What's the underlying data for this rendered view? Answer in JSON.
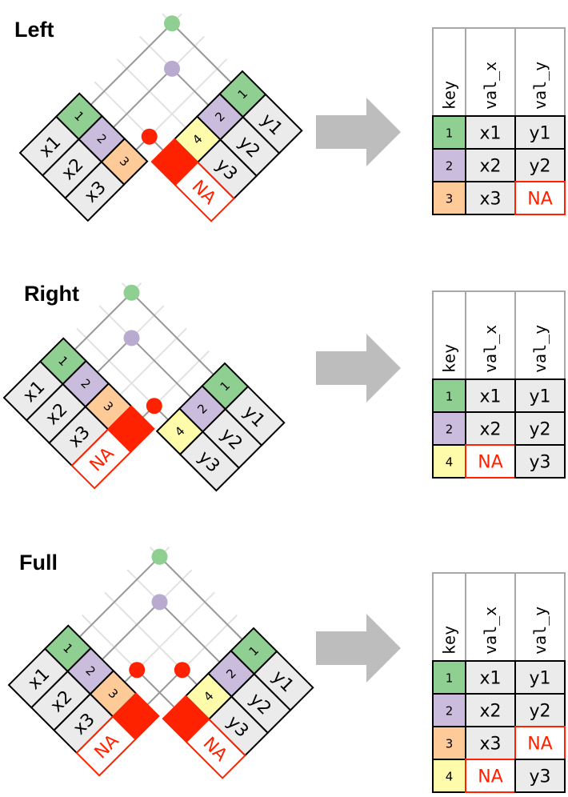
{
  "colors": {
    "1": "#8fcf92",
    "2": "#c9bcdc",
    "3": "#fdca98",
    "4": "#fefbaa",
    "na": "#ff2200",
    "value_cell": "#ebebeb",
    "arrow": "#bdbdbd",
    "dot_2": "#b9abd0"
  },
  "result_headers": [
    "key",
    "val_x",
    "val_y"
  ],
  "panels": [
    {
      "title": "Left",
      "left_table": [
        {
          "key": "1",
          "value": "x1"
        },
        {
          "key": "2",
          "value": "x2"
        },
        {
          "key": "3",
          "value": "x3"
        }
      ],
      "right_table": [
        {
          "key": "1",
          "value": "y1"
        },
        {
          "key": "2",
          "value": "y2"
        },
        {
          "key": "4",
          "value": "y3"
        },
        {
          "key": "",
          "value": "NA",
          "missing": true
        }
      ],
      "matches": [
        [
          0,
          0,
          "1"
        ],
        [
          1,
          1,
          "2"
        ],
        [
          2,
          3,
          "na"
        ]
      ],
      "result_rows": [
        {
          "key": "1",
          "val_x": "x1",
          "val_y": "y1"
        },
        {
          "key": "2",
          "val_x": "x2",
          "val_y": "y2"
        },
        {
          "key": "3",
          "val_x": "x3",
          "val_y": "NA"
        }
      ]
    },
    {
      "title": "Right",
      "left_table": [
        {
          "key": "1",
          "value": "x1"
        },
        {
          "key": "2",
          "value": "x2"
        },
        {
          "key": "3",
          "value": "x3"
        },
        {
          "key": "",
          "value": "NA",
          "missing": true
        }
      ],
      "right_table": [
        {
          "key": "1",
          "value": "y1"
        },
        {
          "key": "2",
          "value": "y2"
        },
        {
          "key": "4",
          "value": "y3"
        }
      ],
      "matches": [
        [
          0,
          0,
          "1"
        ],
        [
          1,
          1,
          "2"
        ],
        [
          3,
          2,
          "na"
        ]
      ],
      "result_rows": [
        {
          "key": "1",
          "val_x": "x1",
          "val_y": "y1"
        },
        {
          "key": "2",
          "val_x": "x2",
          "val_y": "y2"
        },
        {
          "key": "4",
          "val_x": "NA",
          "val_y": "y3"
        }
      ]
    },
    {
      "title": "Full",
      "left_table": [
        {
          "key": "1",
          "value": "x1"
        },
        {
          "key": "2",
          "value": "x2"
        },
        {
          "key": "3",
          "value": "x3"
        },
        {
          "key": "",
          "value": "NA",
          "missing": true
        }
      ],
      "right_table": [
        {
          "key": "1",
          "value": "y1"
        },
        {
          "key": "2",
          "value": "y2"
        },
        {
          "key": "4",
          "value": "y3"
        },
        {
          "key": "",
          "value": "NA",
          "missing": true
        }
      ],
      "matches": [
        [
          0,
          0,
          "1"
        ],
        [
          1,
          1,
          "2"
        ],
        [
          2,
          3,
          "na"
        ],
        [
          3,
          2,
          "na"
        ]
      ],
      "result_rows": [
        {
          "key": "1",
          "val_x": "x1",
          "val_y": "y1"
        },
        {
          "key": "2",
          "val_x": "x2",
          "val_y": "y2"
        },
        {
          "key": "3",
          "val_x": "x3",
          "val_y": "NA"
        },
        {
          "key": "4",
          "val_x": "NA",
          "val_y": "y3"
        }
      ]
    }
  ]
}
